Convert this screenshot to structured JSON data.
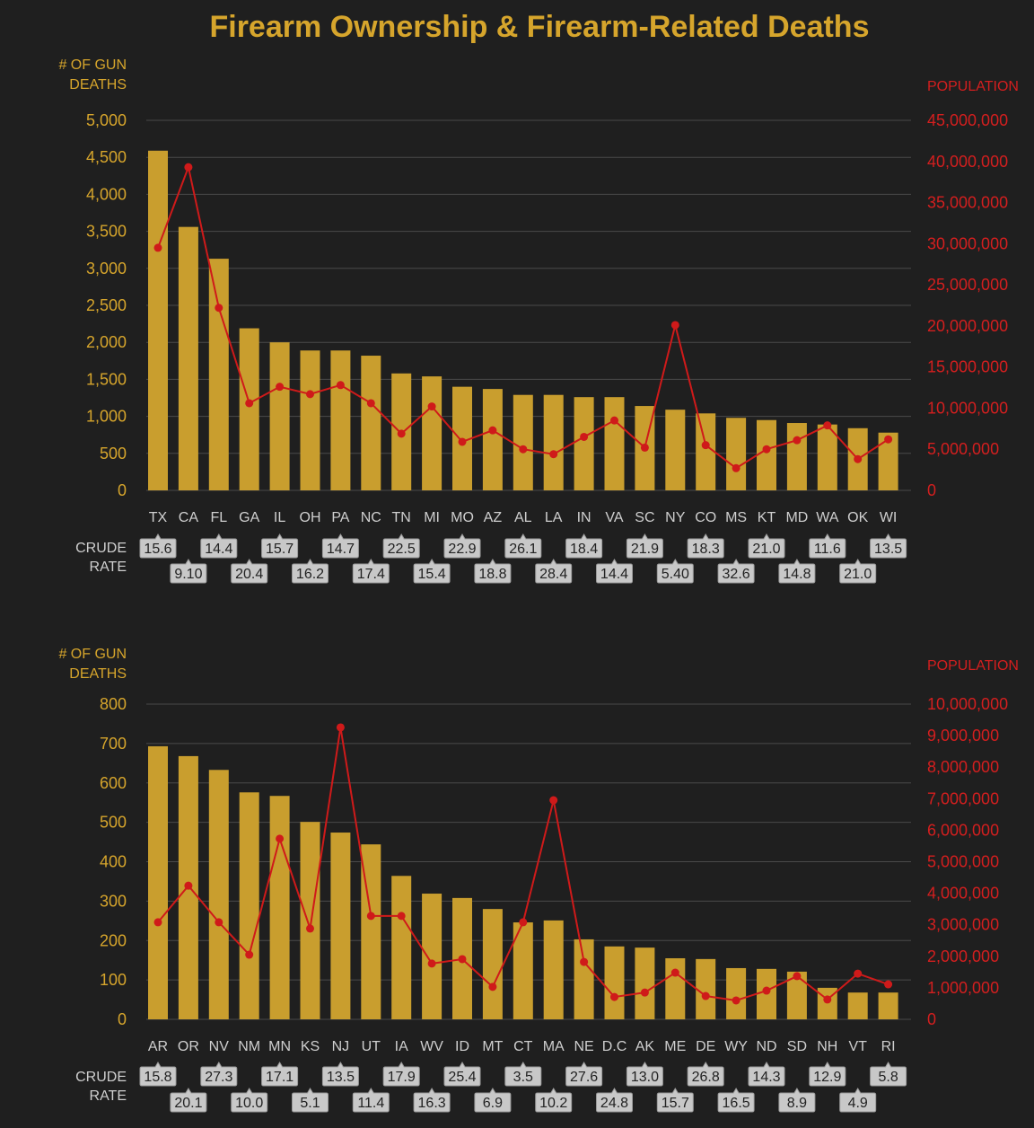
{
  "title": "Firearm Ownership & Firearm-Related Deaths",
  "colors": {
    "bar": "#c99e2e",
    "line": "#cf1a1a",
    "grid": "#4a4a4a",
    "rate_box": "#c8c8c8"
  },
  "chart_data": [
    {
      "type": "bar+line",
      "left_axis_title": [
        "# OF GUN",
        "DEATHS"
      ],
      "right_axis_title": "POPULATION",
      "rate_label": [
        "CRUDE",
        "RATE"
      ],
      "ylim": [
        0,
        5000
      ],
      "y2lim": [
        0,
        45000000
      ],
      "left_ticks": [
        "0",
        "500",
        "1,000",
        "1,500",
        "2,000",
        "2,500",
        "3,000",
        "3,500",
        "4,000",
        "4,500",
        "5,000"
      ],
      "left_tick_values": [
        0,
        500,
        1000,
        1500,
        2000,
        2500,
        3000,
        3500,
        4000,
        4500,
        5000
      ],
      "right_ticks": [
        "0",
        "5,000,000",
        "10,000,000",
        "15,000,000",
        "20,000,000",
        "25,000,000",
        "30,000,000",
        "35,000,000",
        "40,000,000",
        "45,000,000"
      ],
      "right_tick_values": [
        0,
        5000000,
        10000000,
        15000000,
        20000000,
        25000000,
        30000000,
        35000000,
        40000000,
        45000000
      ],
      "categories": [
        "TX",
        "CA",
        "FL",
        "GA",
        "IL",
        "OH",
        "PA",
        "NC",
        "TN",
        "MI",
        "MO",
        "AZ",
        "AL",
        "LA",
        "IN",
        "VA",
        "SC",
        "NY",
        "CO",
        "MS",
        "KT",
        "MD",
        "WA",
        "OK",
        "WI"
      ],
      "series": [
        {
          "name": "# of gun deaths",
          "type": "bar",
          "values": [
            4590,
            3560,
            3130,
            2190,
            2000,
            1890,
            1890,
            1820,
            1580,
            1540,
            1400,
            1370,
            1290,
            1290,
            1260,
            1260,
            1140,
            1090,
            1040,
            980,
            950,
            910,
            890,
            840,
            780
          ]
        },
        {
          "name": "Population",
          "type": "line",
          "values": [
            29500000,
            39300000,
            22200000,
            10600000,
            12600000,
            11700000,
            12800000,
            10600000,
            6900000,
            10200000,
            5900000,
            7300000,
            5000000,
            4400000,
            6500000,
            8500000,
            5200000,
            20100000,
            5500000,
            2700000,
            5000000,
            6100000,
            7900000,
            3800000,
            6200000
          ]
        }
      ],
      "crude_rate": [
        "15.6",
        "9.10",
        "14.4",
        "20.4",
        "15.7",
        "16.2",
        "14.7",
        "17.4",
        "22.5",
        "15.4",
        "22.9",
        "18.8",
        "26.1",
        "28.4",
        "18.4",
        "14.4",
        "21.9",
        "5.40",
        "18.3",
        "32.6",
        "21.0",
        "14.8",
        "11.6",
        "21.0",
        "13.5"
      ]
    },
    {
      "type": "bar+line",
      "left_axis_title": [
        "# OF GUN",
        "DEATHS"
      ],
      "right_axis_title": "POPULATION",
      "rate_label": [
        "CRUDE",
        "RATE"
      ],
      "ylim": [
        0,
        800
      ],
      "y2lim": [
        0,
        10000000
      ],
      "left_ticks": [
        "0",
        "100",
        "200",
        "300",
        "400",
        "500",
        "600",
        "700",
        "800"
      ],
      "left_tick_values": [
        0,
        100,
        200,
        300,
        400,
        500,
        600,
        700,
        800
      ],
      "right_ticks": [
        "0",
        "1,000,000",
        "2,000,000",
        "3,000,000",
        "4,000,000",
        "5,000,000",
        "6,000,000",
        "7,000,000",
        "8,000,000",
        "9,000,000",
        "10,000,000"
      ],
      "right_tick_values": [
        0,
        1000000,
        2000000,
        3000000,
        4000000,
        5000000,
        6000000,
        7000000,
        8000000,
        9000000,
        10000000
      ],
      "categories": [
        "AR",
        "OR",
        "NV",
        "NM",
        "MN",
        "KS",
        "NJ",
        "UT",
        "IA",
        "WV",
        "ID",
        "MT",
        "CT",
        "MA",
        "NE",
        "D.C",
        "AK",
        "ME",
        "DE",
        "WY",
        "ND",
        "SD",
        "NH",
        "VT",
        "RI"
      ],
      "series": [
        {
          "name": "# of gun deaths",
          "type": "bar",
          "values": [
            693,
            668,
            633,
            576,
            567,
            501,
            474,
            444,
            364,
            319,
            308,
            280,
            246,
            251,
            203,
            185,
            182,
            155,
            153,
            130,
            128,
            121,
            80,
            68,
            68
          ]
        },
        {
          "name": "Population",
          "type": "line",
          "values": [
            3080000,
            4240000,
            3080000,
            2050000,
            5730000,
            2880000,
            9260000,
            3280000,
            3280000,
            1770000,
            1910000,
            1030000,
            3080000,
            6950000,
            1820000,
            710000,
            850000,
            1480000,
            740000,
            600000,
            910000,
            1370000,
            630000,
            1450000,
            1110000
          ]
        }
      ],
      "crude_rate": [
        "15.8",
        "20.1",
        "27.3",
        "10.0",
        "17.1",
        "5.1",
        "13.5",
        "11.4",
        "17.9",
        "16.3",
        "25.4",
        "6.9",
        "3.5",
        "10.2",
        "27.6",
        "24.8",
        "13.0",
        "15.7",
        "26.8",
        "16.5",
        "14.3",
        "8.9",
        "12.9",
        "4.9",
        "5.8"
      ]
    }
  ]
}
